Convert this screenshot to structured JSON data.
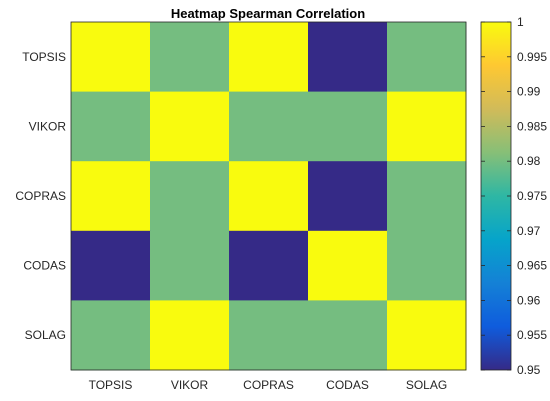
{
  "chart_data": {
    "type": "heatmap",
    "title": "Heatmap Spearman Correlation",
    "x_categories": [
      "TOPSIS",
      "VIKOR",
      "COPRAS",
      "CODAS",
      "SOLAG"
    ],
    "y_categories": [
      "TOPSIS",
      "VIKOR",
      "COPRAS",
      "CODAS",
      "SOLAG"
    ],
    "values": [
      [
        1.0,
        0.98,
        1.0,
        0.95,
        0.98
      ],
      [
        0.98,
        1.0,
        0.98,
        0.98,
        1.0
      ],
      [
        1.0,
        0.98,
        1.0,
        0.95,
        0.98
      ],
      [
        0.95,
        0.98,
        0.95,
        1.0,
        0.98
      ],
      [
        0.98,
        1.0,
        0.98,
        0.98,
        1.0
      ]
    ],
    "colorbar": {
      "range": [
        0.95,
        1.0
      ],
      "ticks": [
        0.95,
        0.955,
        0.96,
        0.965,
        0.97,
        0.975,
        0.98,
        0.985,
        0.99,
        0.995,
        1.0
      ],
      "tick_labels": [
        "0.95",
        "0.955",
        "0.96",
        "0.965",
        "0.97",
        "0.975",
        "0.98",
        "0.985",
        "0.99",
        "0.995",
        "1"
      ],
      "colormap": "parula"
    }
  }
}
